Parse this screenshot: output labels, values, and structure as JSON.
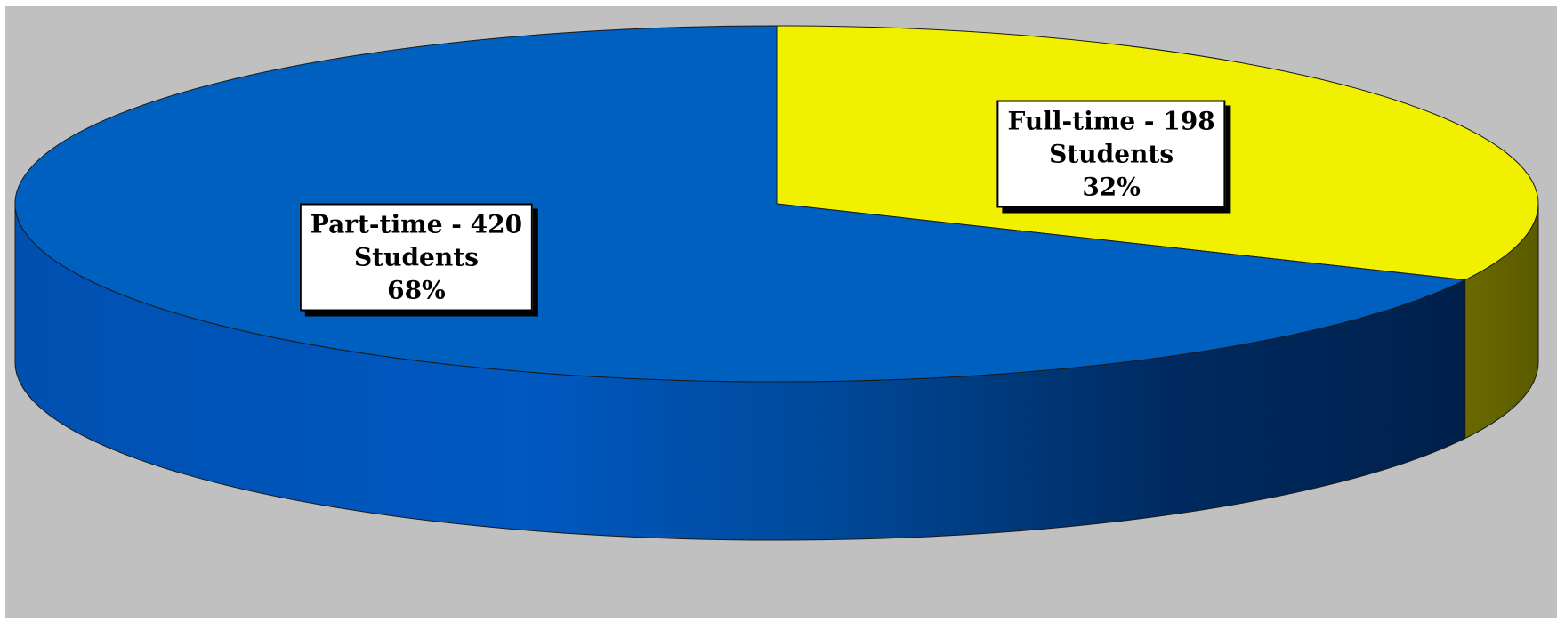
{
  "chart_data": {
    "type": "pie",
    "style": "3d",
    "categories": [
      "Part-time",
      "Full-time"
    ],
    "values": [
      420,
      198
    ],
    "percentages": [
      68,
      32
    ],
    "colors": [
      "#0060c0",
      "#f0f000"
    ],
    "labels": [
      {
        "line1": "Part-time - 420",
        "line2": "Students",
        "line3": "68%"
      },
      {
        "line1": "Full-time - 198",
        "line2": "Students",
        "line3": "32%"
      }
    ],
    "background_color": "#c0c0c0"
  }
}
